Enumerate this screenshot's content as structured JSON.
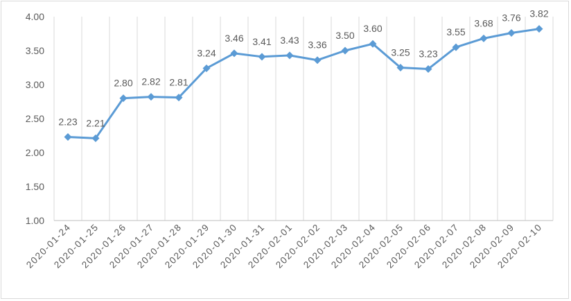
{
  "chart_data": {
    "type": "line",
    "title": "",
    "xlabel": "",
    "ylabel": "",
    "categories": [
      "2020-01-24",
      "2020-01-25",
      "2020-01-26",
      "2020-01-27",
      "2020-01-28",
      "2020-01-29",
      "2020-01-30",
      "2020-01-31",
      "2020-02-01",
      "2020-02-02",
      "2020-02-03",
      "2020-02-04",
      "2020-02-05",
      "2020-02-06",
      "2020-02-07",
      "2020-02-08",
      "2020-02-09",
      "2020-02-10"
    ],
    "series": [
      {
        "values": [
          2.23,
          2.21,
          2.8,
          2.82,
          2.81,
          3.24,
          3.46,
          3.41,
          3.43,
          3.36,
          3.5,
          3.6,
          3.25,
          3.23,
          3.55,
          3.68,
          3.76,
          3.82
        ],
        "labels": [
          "2.23",
          "2.21",
          "2.80",
          "2.82",
          "2.81",
          "3.24",
          "3.46",
          "3.41",
          "3.43",
          "3.36",
          "3.50",
          "3.60",
          "3.25",
          "3.23",
          "3.55",
          "3.68",
          "3.76",
          "3.82"
        ],
        "color": "#5b9bd5",
        "marker": "diamond"
      }
    ],
    "ylim": [
      1.0,
      4.0
    ],
    "yticks": [
      "1.00",
      "1.50",
      "2.00",
      "2.50",
      "3.00",
      "3.50",
      "4.00"
    ],
    "grid": "vertical",
    "legend": "none",
    "colors": {
      "line": "#5b9bd5",
      "grid": "#d9d9d9",
      "text": "#595959",
      "axis": "#bfbfbf"
    }
  }
}
